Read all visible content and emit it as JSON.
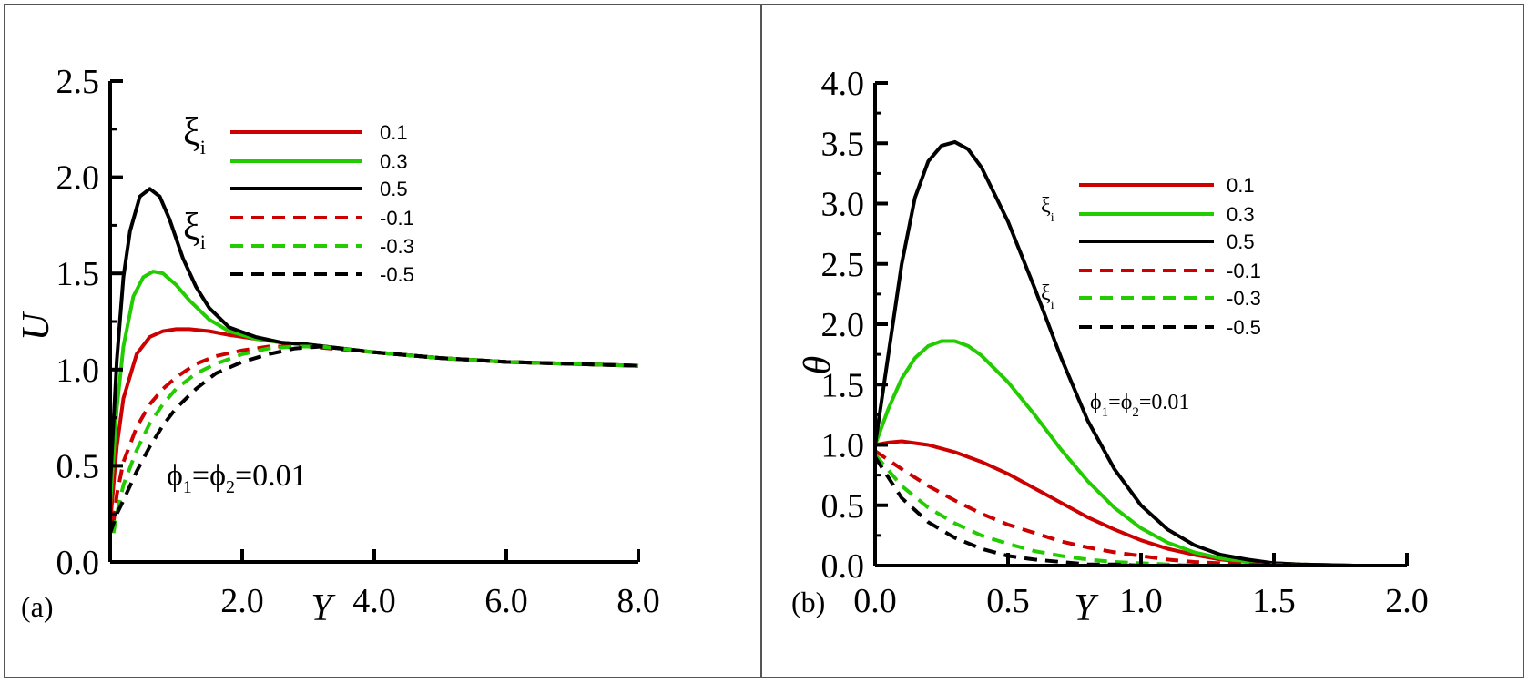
{
  "chart_data": [
    {
      "type": "line",
      "panel_label": "(a)",
      "xlabel": "Y",
      "ylabel": "U",
      "xlim": [
        0,
        8
      ],
      "ylim": [
        0,
        2.5
      ],
      "xticks": [
        "2.0",
        "4.0",
        "6.0",
        "8.0"
      ],
      "yticks": [
        "0.0",
        "0.5",
        "1.0",
        "1.5",
        "2.0",
        "2.5"
      ],
      "annotation": {
        "phi1": "ϕ",
        "sub1": "1",
        "eq": "=",
        "phi2": "ϕ",
        "sub2": "2",
        "value": "=0.01"
      },
      "legend": {
        "symbol": "ξ",
        "sub": "i",
        "placement": "top-center",
        "entries": [
          {
            "label": "0.1",
            "color": "#cc0000",
            "style": "solid"
          },
          {
            "label": "0.3",
            "color": "#22cc00",
            "style": "solid"
          },
          {
            "label": "0.5",
            "color": "#000000",
            "style": "solid"
          },
          {
            "label": "-0.1",
            "color": "#cc0000",
            "style": "dashed"
          },
          {
            "label": "-0.3",
            "color": "#22cc00",
            "style": "dashed"
          },
          {
            "label": "-0.5",
            "color": "#000000",
            "style": "dashed"
          }
        ]
      },
      "series": [
        {
          "name": "0.1",
          "color": "#cc0000",
          "style": "solid",
          "x": [
            0,
            0.1,
            0.2,
            0.4,
            0.6,
            0.8,
            1.0,
            1.2,
            1.5,
            1.8,
            2.2,
            2.6,
            3.0,
            4.0,
            5.0,
            6.0,
            7.0,
            8.0
          ],
          "y": [
            0.2,
            0.6,
            0.85,
            1.08,
            1.17,
            1.2,
            1.21,
            1.21,
            1.2,
            1.18,
            1.16,
            1.14,
            1.13,
            1.09,
            1.06,
            1.04,
            1.03,
            1.02
          ]
        },
        {
          "name": "0.3",
          "color": "#22cc00",
          "style": "solid",
          "x": [
            0,
            0.1,
            0.2,
            0.35,
            0.5,
            0.65,
            0.8,
            1.0,
            1.2,
            1.5,
            1.8,
            2.2,
            2.6,
            3.0,
            4.0,
            5.0,
            6.0,
            7.0,
            8.0
          ],
          "y": [
            0.3,
            0.8,
            1.12,
            1.38,
            1.48,
            1.51,
            1.5,
            1.44,
            1.36,
            1.26,
            1.2,
            1.16,
            1.14,
            1.13,
            1.09,
            1.06,
            1.04,
            1.03,
            1.02
          ]
        },
        {
          "name": "0.5",
          "color": "#000000",
          "style": "solid",
          "x": [
            0,
            0.1,
            0.2,
            0.3,
            0.45,
            0.6,
            0.75,
            0.9,
            1.1,
            1.3,
            1.5,
            1.8,
            2.2,
            2.6,
            3.0,
            4.0,
            5.0,
            6.0,
            7.0,
            8.0
          ],
          "y": [
            0.4,
            1.05,
            1.48,
            1.72,
            1.9,
            1.94,
            1.9,
            1.78,
            1.58,
            1.43,
            1.32,
            1.22,
            1.17,
            1.14,
            1.13,
            1.09,
            1.06,
            1.04,
            1.03,
            1.02
          ]
        },
        {
          "name": "-0.1",
          "color": "#cc0000",
          "style": "dashed",
          "x": [
            0.05,
            0.1,
            0.2,
            0.4,
            0.6,
            0.8,
            1.0,
            1.3,
            1.6,
            2.0,
            2.4,
            3.0,
            4.0,
            5.0,
            6.0,
            7.0,
            8.0
          ],
          "y": [
            0.2,
            0.35,
            0.52,
            0.7,
            0.82,
            0.9,
            0.96,
            1.03,
            1.07,
            1.1,
            1.12,
            1.12,
            1.09,
            1.06,
            1.04,
            1.03,
            1.02
          ]
        },
        {
          "name": "-0.3",
          "color": "#22cc00",
          "style": "dashed",
          "x": [
            0.05,
            0.1,
            0.2,
            0.4,
            0.6,
            0.8,
            1.0,
            1.3,
            1.6,
            2.0,
            2.4,
            2.8,
            3.2,
            4.0,
            5.0,
            6.0,
            7.0,
            8.0
          ],
          "y": [
            0.15,
            0.25,
            0.4,
            0.58,
            0.72,
            0.82,
            0.9,
            0.98,
            1.03,
            1.08,
            1.11,
            1.12,
            1.12,
            1.09,
            1.06,
            1.04,
            1.03,
            1.02
          ]
        },
        {
          "name": "-0.5",
          "color": "#000000",
          "style": "dashed",
          "x": [
            0.0,
            0.1,
            0.2,
            0.4,
            0.6,
            0.8,
            1.0,
            1.3,
            1.6,
            2.0,
            2.4,
            2.8,
            3.2,
            4.0,
            5.0,
            6.0,
            7.0,
            8.0
          ],
          "y": [
            0.15,
            0.25,
            0.32,
            0.47,
            0.6,
            0.71,
            0.8,
            0.9,
            0.98,
            1.04,
            1.08,
            1.11,
            1.12,
            1.09,
            1.06,
            1.04,
            1.03,
            1.02
          ]
        }
      ]
    },
    {
      "type": "line",
      "panel_label": "(b)",
      "xlabel": "Y",
      "ylabel": "θ",
      "xlim": [
        0,
        2
      ],
      "ylim": [
        0,
        4
      ],
      "xticks": [
        "0.0",
        "0.5",
        "1.0",
        "1.5",
        "2.0"
      ],
      "yticks": [
        "0.0",
        "0.5",
        "1.0",
        "1.5",
        "2.0",
        "2.5",
        "3.0",
        "3.5",
        "4.0"
      ],
      "annotation": {
        "phi1": "ϕ",
        "sub1": "1",
        "eq": "=",
        "phi2": "ϕ",
        "sub2": "2",
        "value": "=0.01"
      },
      "legend": {
        "symbol": "ξ",
        "sub": "i",
        "placement": "top-right",
        "entries": [
          {
            "label": "0.1",
            "color": "#cc0000",
            "style": "solid"
          },
          {
            "label": "0.3",
            "color": "#22cc00",
            "style": "solid"
          },
          {
            "label": "0.5",
            "color": "#000000",
            "style": "solid"
          },
          {
            "label": "-0.1",
            "color": "#cc0000",
            "style": "dashed"
          },
          {
            "label": "-0.3",
            "color": "#22cc00",
            "style": "dashed"
          },
          {
            "label": "-0.5",
            "color": "#000000",
            "style": "dashed"
          }
        ]
      },
      "series": [
        {
          "name": "0.1",
          "color": "#cc0000",
          "style": "solid",
          "x": [
            0,
            0.05,
            0.1,
            0.2,
            0.3,
            0.4,
            0.5,
            0.6,
            0.7,
            0.8,
            0.9,
            1.0,
            1.1,
            1.2,
            1.3,
            1.4,
            1.5,
            1.6,
            1.8,
            2.0
          ],
          "y": [
            1.0,
            1.02,
            1.03,
            1.0,
            0.94,
            0.86,
            0.76,
            0.64,
            0.52,
            0.4,
            0.3,
            0.21,
            0.14,
            0.09,
            0.05,
            0.03,
            0.02,
            0.01,
            0.0,
            0.0
          ]
        },
        {
          "name": "0.3",
          "color": "#22cc00",
          "style": "solid",
          "x": [
            0,
            0.05,
            0.1,
            0.15,
            0.2,
            0.25,
            0.3,
            0.35,
            0.4,
            0.5,
            0.6,
            0.7,
            0.8,
            0.9,
            1.0,
            1.1,
            1.2,
            1.3,
            1.4,
            1.5,
            1.6,
            1.8,
            2.0
          ],
          "y": [
            1.0,
            1.3,
            1.55,
            1.72,
            1.82,
            1.86,
            1.86,
            1.82,
            1.74,
            1.52,
            1.25,
            0.96,
            0.7,
            0.48,
            0.31,
            0.19,
            0.11,
            0.06,
            0.03,
            0.02,
            0.01,
            0.0,
            0.0
          ]
        },
        {
          "name": "0.5",
          "color": "#000000",
          "style": "solid",
          "x": [
            0,
            0.05,
            0.1,
            0.15,
            0.2,
            0.25,
            0.3,
            0.35,
            0.4,
            0.5,
            0.6,
            0.7,
            0.8,
            0.9,
            1.0,
            1.1,
            1.2,
            1.3,
            1.4,
            1.5,
            1.6,
            1.8,
            2.0
          ],
          "y": [
            1.0,
            1.75,
            2.5,
            3.05,
            3.35,
            3.48,
            3.51,
            3.45,
            3.3,
            2.85,
            2.3,
            1.72,
            1.2,
            0.8,
            0.5,
            0.3,
            0.17,
            0.09,
            0.05,
            0.02,
            0.01,
            0.0,
            0.0
          ]
        },
        {
          "name": "-0.1",
          "color": "#cc0000",
          "style": "dashed",
          "x": [
            0,
            0.1,
            0.2,
            0.3,
            0.4,
            0.5,
            0.6,
            0.7,
            0.8,
            0.9,
            1.0,
            1.1,
            1.2,
            1.3,
            1.4,
            1.5,
            1.6,
            1.8,
            2.0
          ],
          "y": [
            0.95,
            0.8,
            0.66,
            0.54,
            0.43,
            0.34,
            0.27,
            0.2,
            0.15,
            0.11,
            0.08,
            0.05,
            0.03,
            0.02,
            0.01,
            0.01,
            0.0,
            0.0,
            0.0
          ]
        },
        {
          "name": "-0.3",
          "color": "#22cc00",
          "style": "dashed",
          "x": [
            0,
            0.1,
            0.2,
            0.3,
            0.4,
            0.5,
            0.6,
            0.7,
            0.8,
            0.9,
            1.0,
            1.1,
            1.2,
            1.4,
            1.6,
            1.8,
            2.0
          ],
          "y": [
            0.92,
            0.66,
            0.48,
            0.35,
            0.25,
            0.18,
            0.12,
            0.08,
            0.05,
            0.03,
            0.02,
            0.01,
            0.0,
            0.0,
            0.0,
            0.0,
            0.0
          ]
        },
        {
          "name": "-0.5",
          "color": "#000000",
          "style": "dashed",
          "x": [
            0,
            0.1,
            0.2,
            0.3,
            0.4,
            0.5,
            0.6,
            0.7,
            0.8,
            0.9,
            1.0,
            1.2,
            1.4,
            1.6,
            1.8,
            2.0
          ],
          "y": [
            0.9,
            0.56,
            0.36,
            0.23,
            0.14,
            0.08,
            0.05,
            0.03,
            0.01,
            0.01,
            0.0,
            0.0,
            0.0,
            0.0,
            0.0,
            0.0
          ]
        }
      ]
    }
  ]
}
